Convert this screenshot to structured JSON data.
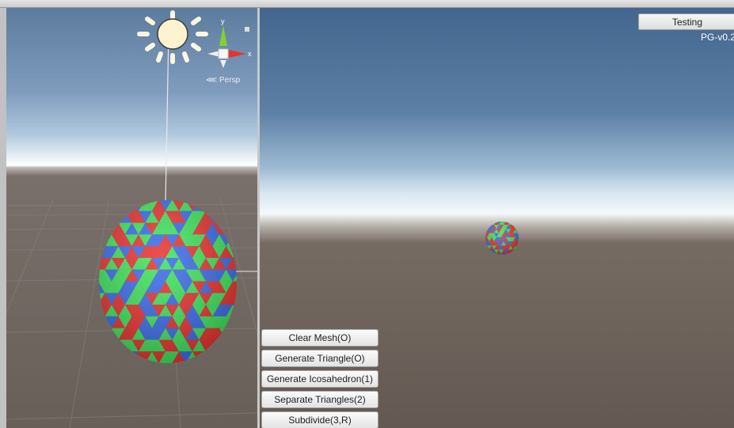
{
  "scene": {
    "projection_label": "Persp",
    "gizmo_axes": {
      "y": "y",
      "x": "x"
    }
  },
  "game": {
    "testing_button": "Testing",
    "version": "PG-v0.2"
  },
  "actions": [
    {
      "label": "Clear Mesh(O)"
    },
    {
      "label": "Generate Triangle(O)"
    },
    {
      "label": "Generate Icosahedron(1)"
    },
    {
      "label": "Separate Triangles(2)"
    },
    {
      "label": "Subdivide(3,R)"
    }
  ],
  "colors": {
    "triangle_red": "#e8312e",
    "triangle_green": "#3ee35a",
    "triangle_blue": "#3a6ae8",
    "button_bg": "#efefef"
  },
  "icons": {
    "sun": "sun-icon",
    "gizmo": "orientation-gizmo-icon",
    "lock": "lock-icon"
  }
}
